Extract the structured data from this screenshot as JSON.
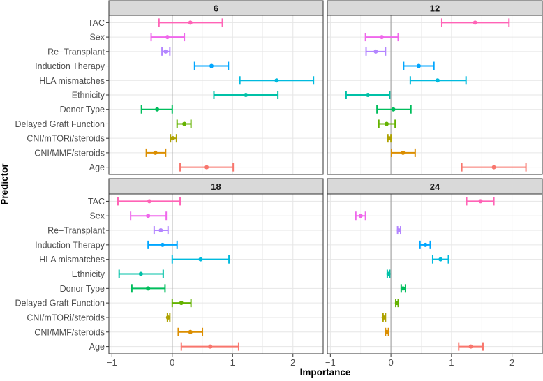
{
  "chart_data": {
    "type": "errorbar-facet",
    "xlabel": "Importance",
    "ylabel": "Predictor",
    "xlim": [
      -1.05,
      2.5
    ],
    "xticks": [
      -1,
      0,
      1,
      2
    ],
    "tick_labels": [
      "−1",
      "0",
      "1",
      "2"
    ],
    "predictors": [
      "TAC",
      "Sex",
      "Re−Transplant",
      "Induction Therapy",
      "HLA mismatches",
      "Ethnicity",
      "Donor Type",
      "Delayed Graft Function",
      "CNI/mTORi/steroids",
      "CNI/MMF/steroids",
      "Age"
    ],
    "colors": [
      "#FF63B6",
      "#EF67EB",
      "#B385FF",
      "#00A6FF",
      "#00BADE",
      "#00C1A7",
      "#00BD5C",
      "#64B200",
      "#AEA200",
      "#DB8E00",
      "#F8766D"
    ],
    "panels": [
      {
        "title": "6",
        "low": [
          -0.22,
          -0.35,
          -0.17,
          0.37,
          1.12,
          0.69,
          -0.51,
          0.08,
          -0.03,
          -0.43,
          0.13
        ],
        "mid": [
          0.3,
          -0.08,
          -0.11,
          0.65,
          1.73,
          1.22,
          -0.25,
          0.2,
          0.01,
          -0.28,
          0.57
        ],
        "high": [
          0.83,
          0.2,
          -0.04,
          0.93,
          2.34,
          1.75,
          0.0,
          0.31,
          0.07,
          -0.11,
          1.01
        ]
      },
      {
        "title": "12",
        "low": [
          0.84,
          -0.42,
          -0.41,
          0.21,
          0.32,
          -0.74,
          -0.23,
          -0.2,
          -0.05,
          0.01,
          1.17
        ],
        "mid": [
          1.39,
          -0.15,
          -0.25,
          0.46,
          0.77,
          -0.38,
          0.04,
          -0.07,
          -0.03,
          0.2,
          1.7
        ],
        "high": [
          1.95,
          0.12,
          -0.09,
          0.71,
          1.24,
          -0.02,
          0.33,
          0.07,
          0.0,
          0.4,
          2.23
        ]
      },
      {
        "title": "18",
        "low": [
          -0.9,
          -0.69,
          -0.3,
          -0.4,
          0.0,
          -0.88,
          -0.67,
          0.0,
          -0.08,
          0.1,
          0.15
        ],
        "mid": [
          -0.38,
          -0.4,
          -0.19,
          -0.16,
          0.47,
          -0.52,
          -0.4,
          0.15,
          -0.07,
          0.3,
          0.63
        ],
        "high": [
          0.13,
          -0.1,
          -0.07,
          0.08,
          0.94,
          -0.15,
          -0.12,
          0.31,
          -0.04,
          0.5,
          1.1
        ]
      },
      {
        "title": "24",
        "low": [
          1.25,
          -0.58,
          0.11,
          0.48,
          0.69,
          -0.06,
          0.17,
          0.08,
          -0.13,
          -0.09,
          1.12
        ],
        "mid": [
          1.48,
          -0.5,
          0.13,
          0.57,
          0.82,
          -0.04,
          0.2,
          0.1,
          -0.12,
          -0.07,
          1.32
        ],
        "high": [
          1.7,
          -0.42,
          0.16,
          0.65,
          0.95,
          -0.02,
          0.24,
          0.12,
          -0.09,
          -0.04,
          1.52
        ]
      }
    ]
  }
}
